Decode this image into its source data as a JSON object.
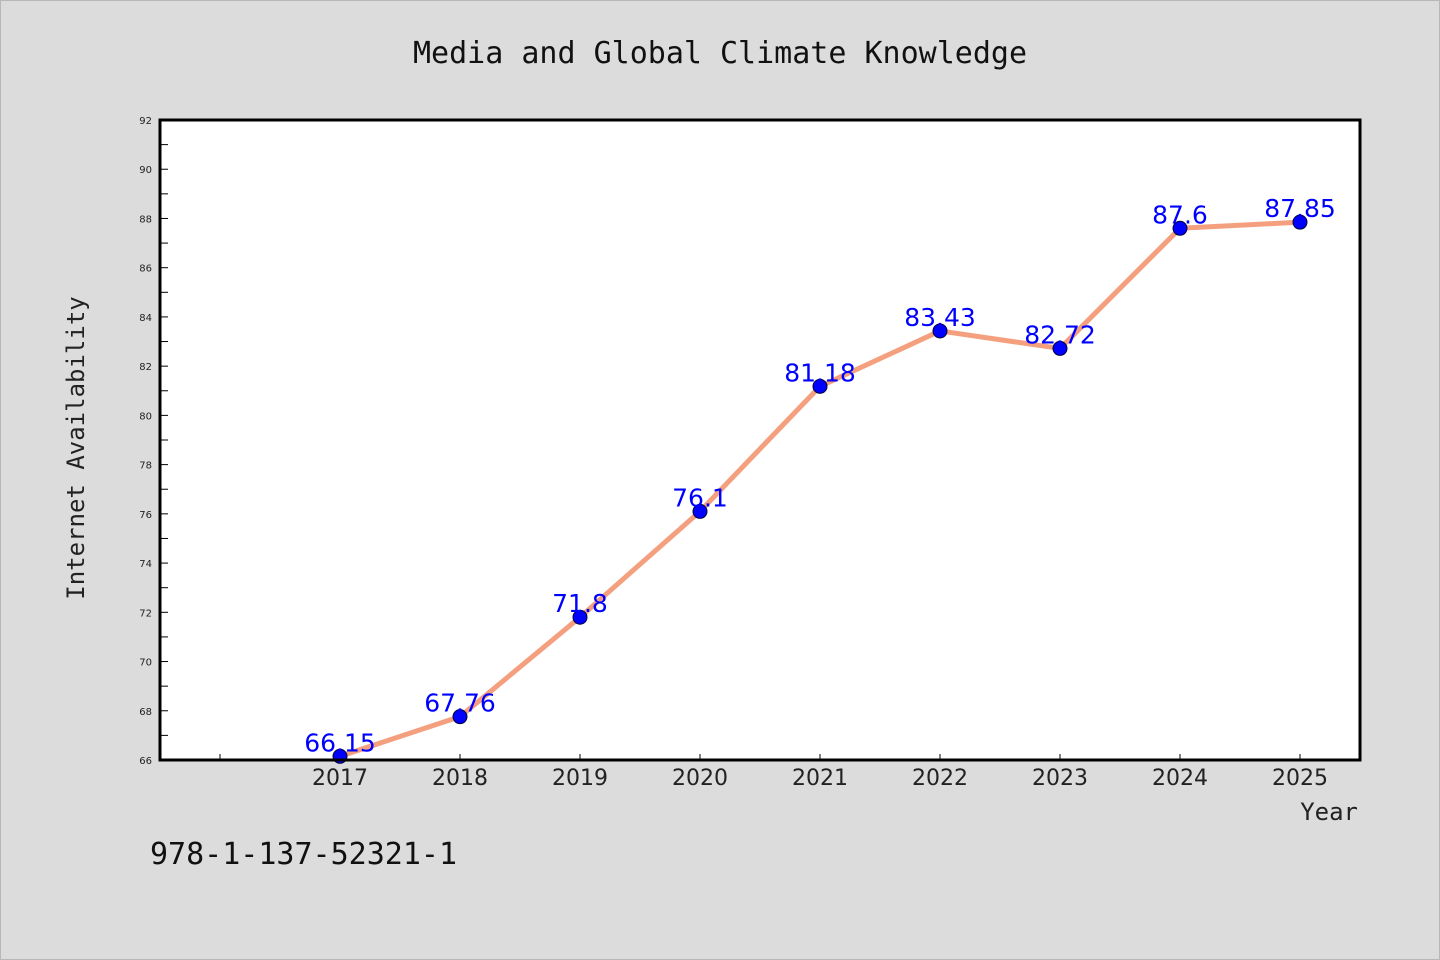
{
  "chart_data": {
    "type": "line",
    "title": "Media and Global Climate Knowledge",
    "xlabel": "Year",
    "ylabel": "Internet Availability",
    "categories": [
      "2017",
      "2018",
      "2019",
      "2020",
      "2021",
      "2022",
      "2023",
      "2024",
      "2025"
    ],
    "values": [
      66.15,
      67.76,
      71.8,
      76.1,
      81.18,
      83.43,
      82.72,
      87.6,
      87.85
    ],
    "data_labels": [
      "66.15",
      "67.76",
      "71.8",
      "76.1",
      "81.18",
      "83.43",
      "82.72",
      "87.6",
      "87.85"
    ],
    "ylim": [
      66,
      92
    ],
    "yticks": [
      66,
      68,
      70,
      72,
      74,
      76,
      78,
      80,
      82,
      84,
      86,
      88,
      90,
      92
    ],
    "grid": false,
    "legend": "none",
    "line_color": "#f4a07e",
    "marker_color": "#0000ff",
    "label_color": "#0000ff"
  },
  "footer_code": "978-1-137-52321-1"
}
